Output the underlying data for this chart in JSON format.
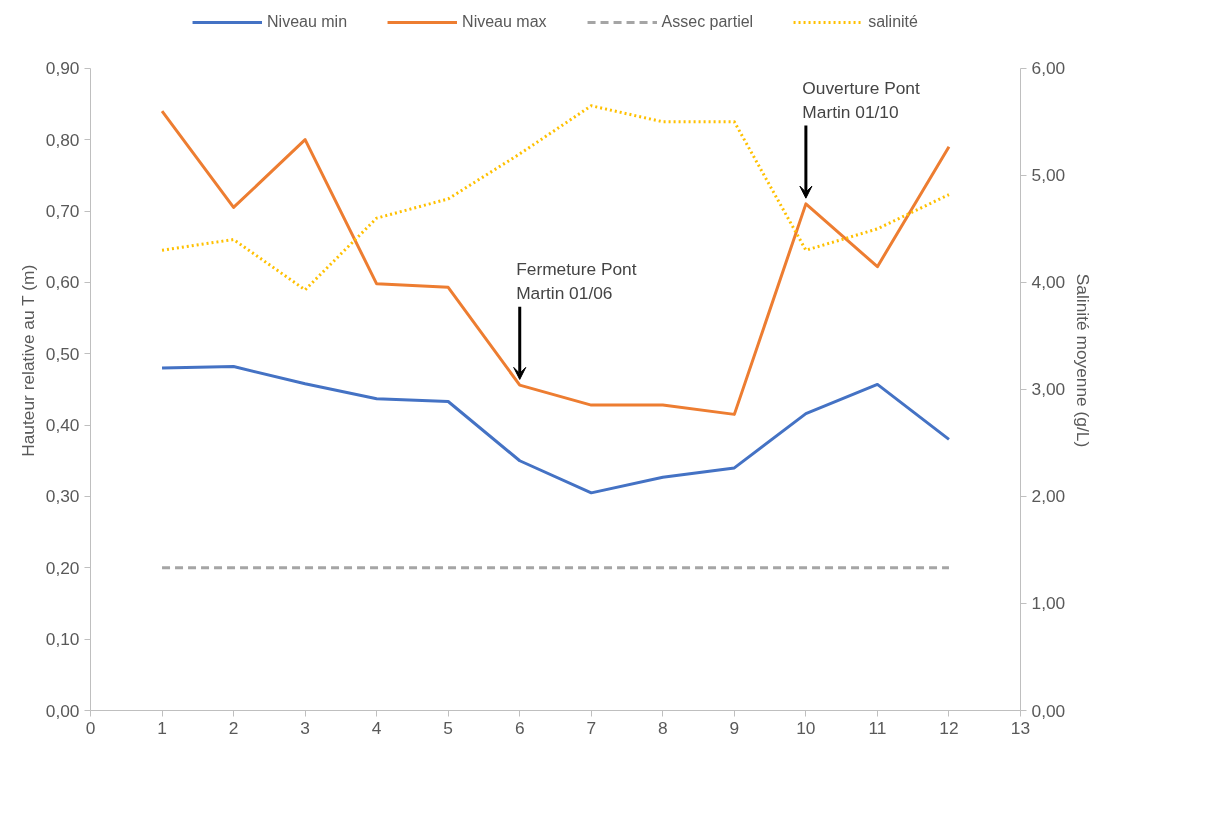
{
  "chart_data": {
    "type": "line",
    "ylabel": "Hauteur relative au T (m)",
    "y2label": "Salinité moyenne (g/L)",
    "x": [
      1,
      2,
      3,
      4,
      5,
      6,
      7,
      8,
      9,
      10,
      11,
      12
    ],
    "xlim": [
      0,
      13
    ],
    "xticks": [
      0,
      1,
      2,
      3,
      4,
      5,
      6,
      7,
      8,
      9,
      10,
      11,
      12,
      13
    ],
    "ylim": [
      0,
      0.9
    ],
    "yticks": [
      {
        "value": 0,
        "label": "0,00"
      },
      {
        "value": 0.1,
        "label": "0,10"
      },
      {
        "value": 0.2,
        "label": "0,20"
      },
      {
        "value": 0.3,
        "label": "0,30"
      },
      {
        "value": 0.4,
        "label": "0,40"
      },
      {
        "value": 0.5,
        "label": "0,50"
      },
      {
        "value": 0.6,
        "label": "0,60"
      },
      {
        "value": 0.7,
        "label": "0,70"
      },
      {
        "value": 0.8,
        "label": "0,80"
      },
      {
        "value": 0.9,
        "label": "0,90"
      }
    ],
    "y2lim": [
      0,
      6
    ],
    "y2ticks": [
      {
        "value": 0,
        "label": "0,00"
      },
      {
        "value": 1,
        "label": "1,00"
      },
      {
        "value": 2,
        "label": "2,00"
      },
      {
        "value": 3,
        "label": "3,00"
      },
      {
        "value": 4,
        "label": "4,00"
      },
      {
        "value": 5,
        "label": "5,00"
      },
      {
        "value": 6,
        "label": "6,00"
      }
    ],
    "series": [
      {
        "name": "Niveau min",
        "color": "#4472c4",
        "line_style": "solid",
        "values": [
          0.48,
          0.482,
          0.458,
          0.437,
          0.433,
          0.35,
          0.305,
          0.327,
          0.34,
          0.416,
          0.457,
          0.38
        ]
      },
      {
        "name": "Niveau max",
        "color": "#ed7d31",
        "line_style": "solid",
        "values": [
          0.84,
          0.705,
          0.8,
          0.598,
          0.593,
          0.456,
          0.428,
          0.428,
          0.415,
          0.71,
          0.622,
          0.79
        ]
      },
      {
        "name": "Assec partiel",
        "color": "#a5a5a5",
        "line_style": "dashed",
        "values": [
          0.2,
          0.2,
          0.2,
          0.2,
          0.2,
          0.2,
          0.2,
          0.2,
          0.2,
          0.2,
          0.2,
          0.2
        ]
      },
      {
        "name": "salinité",
        "color": "#ffc000",
        "line_style": "dotted",
        "axis": "y2",
        "values": [
          4.3,
          4.4,
          3.93,
          4.6,
          4.78,
          5.2,
          5.65,
          5.5,
          5.5,
          4.3,
          4.5,
          4.82
        ]
      }
    ],
    "annotations": [
      {
        "text": "Fermeture  Pont\nMartin 01/06",
        "x": 6,
        "y": 0.456
      },
      {
        "text": "Ouverture  Pont\nMartin 01/10",
        "x": 10,
        "y": 0.71
      }
    ],
    "legend": "top",
    "grid": false,
    "marker": "none"
  }
}
